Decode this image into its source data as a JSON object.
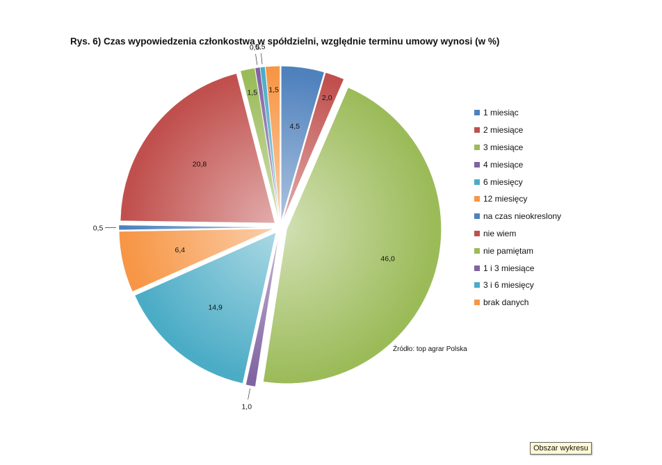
{
  "chart_data": {
    "type": "pie",
    "title": "Rys. 6) Czas wypowiedzenia członkostwa w spółdzielni, względnie terminu umowy wynosi (w %)",
    "slices": [
      {
        "label": "1 miesiąc",
        "value": 4.5,
        "value_label": "4,5",
        "color": "#4f81bd"
      },
      {
        "label": "2 miesiące",
        "value": 2.0,
        "value_label": "2,0",
        "color": "#c0504d"
      },
      {
        "label": "3 miesiące",
        "value": 46.0,
        "value_label": "46,0",
        "color": "#9bbb59"
      },
      {
        "label": "4 miesiące",
        "value": 1.0,
        "value_label": "1,0",
        "color": "#8064a2"
      },
      {
        "label": "6 miesięcy",
        "value": 14.9,
        "value_label": "14,9",
        "color": "#4bacc6"
      },
      {
        "label": "12 miesięcy",
        "value": 6.4,
        "value_label": "6,4",
        "color": "#f79646"
      },
      {
        "label": "na czas nieokreslony",
        "value": 0.5,
        "value_label": "0,5",
        "color": "#4f81bd"
      },
      {
        "label": "nie wiem",
        "value": 20.8,
        "value_label": "20,8",
        "color": "#c0504d"
      },
      {
        "label": "nie pamiętam",
        "value": 1.5,
        "value_label": "1,5",
        "color": "#9bbb59"
      },
      {
        "label": "1 i 3 miesiące",
        "value": 0.5,
        "value_label": "0,5",
        "color": "#8064a2"
      },
      {
        "label": "3 i 6 miesięcy",
        "value": 0.5,
        "value_label": "0,5",
        "color": "#4bacc6"
      },
      {
        "label": "brak danych",
        "value": 1.5,
        "value_label": "1,5",
        "color": "#f79646"
      }
    ],
    "legend_position": "right",
    "exploded": true
  },
  "source_note": "Źródło: top agrar Polska",
  "tooltip": "Obszar wykresu"
}
